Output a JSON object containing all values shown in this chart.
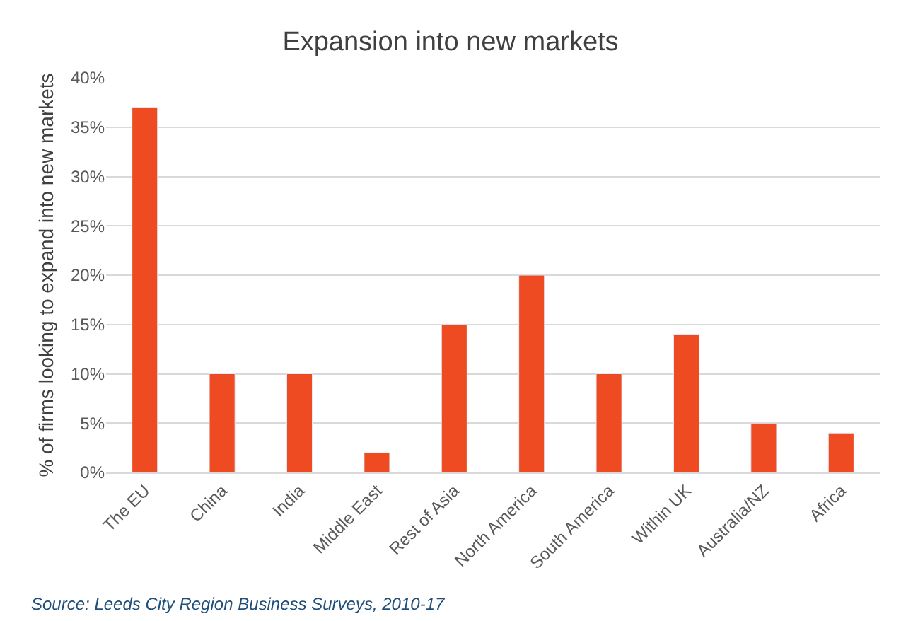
{
  "chart_data": {
    "type": "bar",
    "title": "Expansion into new markets",
    "ylabel": "% of firms looking to expand into new markets",
    "categories": [
      "The EU",
      "China",
      "India",
      "Middle East",
      "Rest of Asia",
      "North America",
      "South America",
      "Within UK",
      "Australia/NZ",
      "Africa"
    ],
    "values": [
      37,
      10,
      10,
      2,
      15,
      20,
      10,
      14,
      5,
      4
    ],
    "color": "#ee4b23",
    "ylim": [
      0,
      40
    ],
    "yticks": [
      {
        "value": 0,
        "label": "0%"
      },
      {
        "value": 5,
        "label": "5%"
      },
      {
        "value": 10,
        "label": "10%"
      },
      {
        "value": 15,
        "label": "15%"
      },
      {
        "value": 20,
        "label": "20%"
      },
      {
        "value": 25,
        "label": "25%"
      },
      {
        "value": 30,
        "label": "30%"
      },
      {
        "value": 35,
        "label": "35%"
      },
      {
        "value": 40,
        "label": "40%"
      }
    ],
    "grid": "y",
    "annotations": [
      "Source: Leeds City Region Business Surveys, 2010-17"
    ]
  }
}
